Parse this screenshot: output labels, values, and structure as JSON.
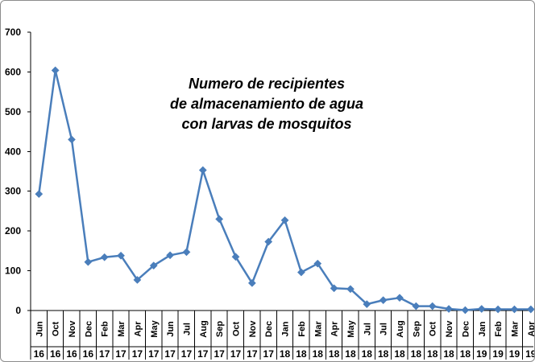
{
  "chart_data": {
    "type": "line",
    "title": "Numero de recipientes de almacenamiento de agua con larvas de mosquitos",
    "title_lines": [
      "Numero de recipientes",
      "de almacenamiento de agua",
      "con larvas de mosquitos"
    ],
    "xlabel": "",
    "ylabel": "",
    "ylim": [
      0,
      700
    ],
    "yticks": [
      0,
      100,
      200,
      300,
      400,
      500,
      600,
      700
    ],
    "grid": false,
    "legend": "none",
    "series_color": "#4a7ebb",
    "categories": [
      {
        "month": "Jun",
        "year": "16"
      },
      {
        "month": "Oct",
        "year": "16"
      },
      {
        "month": "Nov",
        "year": "16"
      },
      {
        "month": "Dec",
        "year": "16"
      },
      {
        "month": "Feb",
        "year": "17"
      },
      {
        "month": "Mar",
        "year": "17"
      },
      {
        "month": "Apr",
        "year": "17"
      },
      {
        "month": "May",
        "year": "17"
      },
      {
        "month": "Jun",
        "year": "17"
      },
      {
        "month": "Jul",
        "year": "17"
      },
      {
        "month": "Aug",
        "year": "17"
      },
      {
        "month": "Sep",
        "year": "17"
      },
      {
        "month": "Oct",
        "year": "17"
      },
      {
        "month": "Nov",
        "year": "17"
      },
      {
        "month": "Dec",
        "year": "17"
      },
      {
        "month": "Jan",
        "year": "18"
      },
      {
        "month": "Feb",
        "year": "18"
      },
      {
        "month": "Mar",
        "year": "18"
      },
      {
        "month": "Apr",
        "year": "18"
      },
      {
        "month": "May",
        "year": "18"
      },
      {
        "month": "Jul",
        "year": "18"
      },
      {
        "month": "Jul",
        "year": "18"
      },
      {
        "month": "Aug",
        "year": "18"
      },
      {
        "month": "Sep",
        "year": "18"
      },
      {
        "month": "Oct",
        "year": "18"
      },
      {
        "month": "Nov",
        "year": "18"
      },
      {
        "month": "Dec",
        "year": "18"
      },
      {
        "month": "Jan",
        "year": "19"
      },
      {
        "month": "Feb",
        "year": "19"
      },
      {
        "month": "Mar",
        "year": "19"
      },
      {
        "month": "Apr",
        "year": "19"
      }
    ],
    "values": [
      293,
      604,
      430,
      122,
      134,
      138,
      77,
      113,
      139,
      147,
      353,
      230,
      135,
      69,
      173,
      227,
      96,
      118,
      56,
      54,
      16,
      26,
      32,
      11,
      11,
      4,
      1,
      4,
      3,
      3,
      3
    ]
  }
}
